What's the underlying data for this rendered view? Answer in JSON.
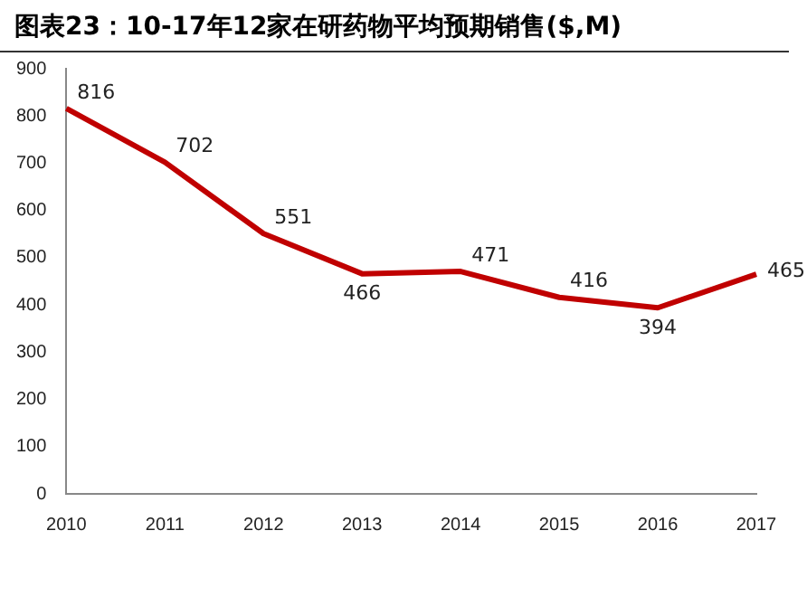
{
  "chart_data": {
    "type": "line",
    "title": "图表23：10-17年12家在研药物平均预期销售($,M)",
    "categories": [
      "2010",
      "2011",
      "2012",
      "2013",
      "2014",
      "2015",
      "2016",
      "2017"
    ],
    "series": [
      {
        "color": "#c00000",
        "values": [
          816,
          702,
          551,
          466,
          471,
          416,
          394,
          465
        ]
      }
    ],
    "ylim": [
      0,
      900
    ],
    "yticks": [
      0,
      100,
      200,
      300,
      400,
      500,
      600,
      700,
      800,
      900
    ],
    "grid": false,
    "legend": false,
    "marker": "none",
    "line_style": "solid",
    "data_labels": true
  }
}
